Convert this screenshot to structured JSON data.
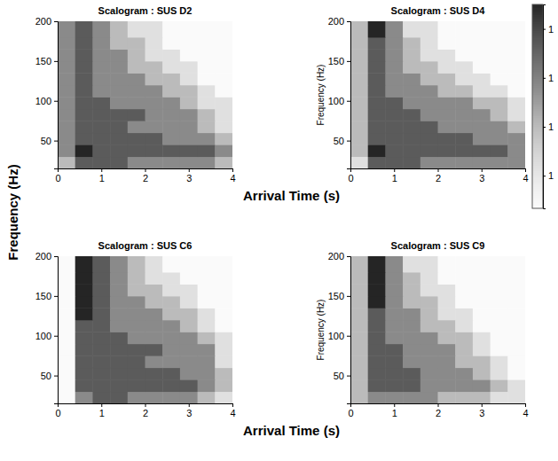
{
  "chart_data": [
    {
      "type": "heatmap",
      "title": "Scalogram : SUS D2",
      "x_label": "Arrival Time (s)",
      "y_label": "Frequency (Hz)",
      "xlim": [
        0,
        4
      ],
      "ylim": [
        15,
        200
      ],
      "xticks": [
        0,
        1,
        2,
        3,
        4
      ],
      "yticks": [
        50,
        100,
        150,
        200
      ],
      "x_bins": [
        0,
        0.4,
        0.8,
        1.2,
        1.6,
        2,
        2.4,
        2.8,
        3.2,
        3.6,
        4
      ],
      "y_bins": [
        15,
        30,
        45,
        60,
        75,
        90,
        105,
        120,
        135,
        150,
        165,
        180,
        200
      ],
      "cells": [
        [
          1.2,
          1.4,
          1.4,
          1.4,
          1.3,
          1.3,
          1.3,
          1.3,
          1.3,
          1.2
        ],
        [
          1.3,
          1.5,
          1.4,
          1.4,
          1.4,
          1.4,
          1.4,
          1.4,
          1.4,
          1.3
        ],
        [
          1.3,
          1.4,
          1.4,
          1.4,
          1.4,
          1.4,
          1.3,
          1.3,
          1.3,
          1.2
        ],
        [
          1.3,
          1.4,
          1.4,
          1.4,
          1.3,
          1.3,
          1.3,
          1.3,
          1.2,
          1.1
        ],
        [
          1.3,
          1.4,
          1.4,
          1.4,
          1.4,
          1.3,
          1.3,
          1.3,
          1.2,
          1.1
        ],
        [
          1.3,
          1.4,
          1.4,
          1.3,
          1.3,
          1.3,
          1.3,
          1.2,
          1.1,
          1.1
        ],
        [
          1.3,
          1.4,
          1.3,
          1.3,
          1.3,
          1.3,
          1.2,
          1.2,
          1.1,
          1.0
        ],
        [
          1.3,
          1.4,
          1.3,
          1.3,
          1.3,
          1.2,
          1.2,
          1.1,
          1.0,
          1.0
        ],
        [
          1.3,
          1.4,
          1.3,
          1.3,
          1.2,
          1.2,
          1.1,
          1.1,
          1.0,
          1.0
        ],
        [
          1.3,
          1.4,
          1.3,
          1.3,
          1.2,
          1.1,
          1.1,
          1.0,
          1.0,
          1.0
        ],
        [
          1.3,
          1.4,
          1.3,
          1.2,
          1.2,
          1.1,
          1.0,
          1.0,
          1.0,
          1.0
        ],
        [
          1.3,
          1.4,
          1.3,
          1.2,
          1.1,
          1.1,
          1.0,
          1.0,
          1.0,
          1.0
        ]
      ]
    },
    {
      "type": "heatmap",
      "title": "Scalogram : SUS D4",
      "y_label": "Frequency (Hz)",
      "xlim": [
        0,
        4
      ],
      "ylim": [
        15,
        200
      ],
      "xticks": [
        0,
        1,
        2,
        3,
        4
      ],
      "yticks": [
        50,
        100,
        150,
        200
      ],
      "x_bins": [
        0,
        0.4,
        0.8,
        1.2,
        1.6,
        2,
        2.4,
        2.8,
        3.2,
        3.6,
        4
      ],
      "y_bins": [
        15,
        30,
        45,
        60,
        75,
        90,
        105,
        120,
        135,
        150,
        165,
        180,
        200
      ],
      "cells": [
        [
          1.1,
          1.4,
          1.4,
          1.4,
          1.3,
          1.3,
          1.3,
          1.3,
          1.3,
          1.3
        ],
        [
          1.2,
          1.5,
          1.4,
          1.4,
          1.4,
          1.4,
          1.4,
          1.4,
          1.4,
          1.3
        ],
        [
          1.2,
          1.4,
          1.4,
          1.4,
          1.4,
          1.4,
          1.4,
          1.3,
          1.3,
          1.3
        ],
        [
          1.2,
          1.4,
          1.4,
          1.4,
          1.4,
          1.3,
          1.3,
          1.3,
          1.3,
          1.2
        ],
        [
          1.2,
          1.4,
          1.4,
          1.4,
          1.3,
          1.3,
          1.3,
          1.3,
          1.2,
          1.1
        ],
        [
          1.2,
          1.4,
          1.4,
          1.3,
          1.3,
          1.3,
          1.3,
          1.2,
          1.2,
          1.1
        ],
        [
          1.2,
          1.4,
          1.3,
          1.3,
          1.3,
          1.2,
          1.2,
          1.1,
          1.1,
          1.0
        ],
        [
          1.2,
          1.4,
          1.3,
          1.3,
          1.2,
          1.2,
          1.1,
          1.1,
          1.0,
          1.0
        ],
        [
          1.2,
          1.4,
          1.3,
          1.2,
          1.2,
          1.1,
          1.1,
          1.0,
          1.0,
          1.0
        ],
        [
          1.2,
          1.4,
          1.3,
          1.2,
          1.1,
          1.1,
          1.0,
          1.0,
          1.0,
          1.0
        ],
        [
          1.2,
          1.4,
          1.3,
          1.2,
          1.1,
          1.0,
          1.0,
          1.0,
          1.0,
          1.0
        ],
        [
          1.2,
          1.5,
          1.3,
          1.1,
          1.1,
          1.0,
          1.0,
          1.0,
          1.0,
          1.0
        ]
      ],
      "colorbar": {
        "range": [
          1,
          1.5
        ],
        "ticks": [
          {
            "value": 1.08,
            "label": "1"
          },
          {
            "value": 1.2,
            "label": "1"
          },
          {
            "value": 1.32,
            "label": "1"
          },
          {
            "value": 1.44,
            "label": "1"
          }
        ]
      }
    },
    {
      "type": "heatmap",
      "title": "Scalogram : SUS C6",
      "x_label": "Arrival Time (s)",
      "xlim": [
        0,
        4
      ],
      "ylim": [
        15,
        200
      ],
      "xticks": [
        0,
        1,
        2,
        3,
        4
      ],
      "yticks": [
        50,
        100,
        150,
        200
      ],
      "x_bins": [
        0,
        0.4,
        0.8,
        1.2,
        1.6,
        2,
        2.4,
        2.8,
        3.2,
        3.6,
        4
      ],
      "y_bins": [
        15,
        30,
        45,
        60,
        75,
        90,
        105,
        120,
        135,
        150,
        165,
        180,
        200
      ],
      "cells": [
        [
          1.0,
          1.3,
          1.4,
          1.4,
          1.3,
          1.3,
          1.3,
          1.3,
          1.2,
          1.1
        ],
        [
          1.0,
          1.4,
          1.4,
          1.4,
          1.4,
          1.4,
          1.4,
          1.4,
          1.3,
          1.2
        ],
        [
          1.0,
          1.4,
          1.4,
          1.4,
          1.4,
          1.4,
          1.4,
          1.3,
          1.3,
          1.2
        ],
        [
          1.0,
          1.4,
          1.4,
          1.4,
          1.4,
          1.3,
          1.3,
          1.3,
          1.3,
          1.1
        ],
        [
          1.0,
          1.4,
          1.4,
          1.4,
          1.4,
          1.4,
          1.3,
          1.3,
          1.3,
          1.1
        ],
        [
          1.0,
          1.4,
          1.4,
          1.4,
          1.3,
          1.3,
          1.3,
          1.3,
          1.2,
          1.1
        ],
        [
          1.0,
          1.4,
          1.4,
          1.3,
          1.3,
          1.3,
          1.3,
          1.2,
          1.1,
          1.0
        ],
        [
          1.0,
          1.5,
          1.4,
          1.3,
          1.3,
          1.3,
          1.2,
          1.2,
          1.1,
          1.0
        ],
        [
          1.0,
          1.5,
          1.4,
          1.3,
          1.3,
          1.2,
          1.2,
          1.1,
          1.0,
          1.0
        ],
        [
          1.0,
          1.5,
          1.4,
          1.3,
          1.2,
          1.2,
          1.1,
          1.1,
          1.0,
          1.0
        ],
        [
          1.0,
          1.5,
          1.4,
          1.3,
          1.2,
          1.1,
          1.1,
          1.0,
          1.0,
          1.0
        ],
        [
          1.0,
          1.5,
          1.4,
          1.3,
          1.2,
          1.1,
          1.0,
          1.0,
          1.0,
          1.0
        ]
      ]
    },
    {
      "type": "heatmap",
      "title": "Scalogram : SUS C9",
      "y_label": "Frequency (Hz)",
      "xlim": [
        0,
        4
      ],
      "ylim": [
        15,
        200
      ],
      "xticks": [
        0,
        1,
        2,
        3,
        4
      ],
      "yticks": [
        50,
        100,
        150,
        200
      ],
      "x_bins": [
        0,
        0.4,
        0.8,
        1.2,
        1.6,
        2,
        2.4,
        2.8,
        3.2,
        3.6,
        4
      ],
      "y_bins": [
        15,
        30,
        45,
        60,
        75,
        90,
        105,
        120,
        135,
        150,
        165,
        180,
        200
      ],
      "cells": [
        [
          1.2,
          1.3,
          1.3,
          1.3,
          1.3,
          1.2,
          1.2,
          1.2,
          1.1,
          1.1
        ],
        [
          1.2,
          1.4,
          1.4,
          1.4,
          1.3,
          1.3,
          1.3,
          1.3,
          1.2,
          1.1
        ],
        [
          1.2,
          1.4,
          1.4,
          1.4,
          1.3,
          1.3,
          1.3,
          1.2,
          1.1,
          1.0
        ],
        [
          1.2,
          1.4,
          1.4,
          1.3,
          1.3,
          1.3,
          1.2,
          1.2,
          1.1,
          1.0
        ],
        [
          1.2,
          1.4,
          1.4,
          1.3,
          1.3,
          1.3,
          1.2,
          1.1,
          1.0,
          1.0
        ],
        [
          1.2,
          1.4,
          1.3,
          1.3,
          1.3,
          1.2,
          1.2,
          1.1,
          1.0,
          1.0
        ],
        [
          1.2,
          1.4,
          1.3,
          1.3,
          1.2,
          1.2,
          1.1,
          1.0,
          1.0,
          1.0
        ],
        [
          1.2,
          1.4,
          1.3,
          1.3,
          1.2,
          1.1,
          1.1,
          1.0,
          1.0,
          1.0
        ],
        [
          1.2,
          1.5,
          1.3,
          1.2,
          1.2,
          1.1,
          1.0,
          1.0,
          1.0,
          1.0
        ],
        [
          1.2,
          1.5,
          1.3,
          1.2,
          1.1,
          1.1,
          1.0,
          1.0,
          1.0,
          1.0
        ],
        [
          1.2,
          1.5,
          1.3,
          1.2,
          1.1,
          1.0,
          1.0,
          1.0,
          1.0,
          1.0
        ],
        [
          1.2,
          1.5,
          1.3,
          1.1,
          1.1,
          1.0,
          1.0,
          1.0,
          1.0,
          1.0
        ]
      ]
    }
  ]
}
